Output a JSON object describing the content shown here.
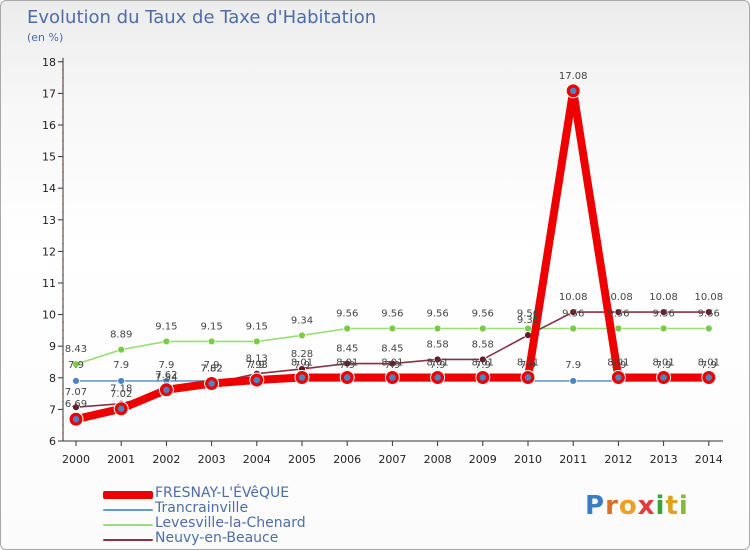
{
  "chart_data": {
    "type": "line",
    "title": "Evolution du Taux de Taxe d'Habitation",
    "subtitle": "(en %)",
    "xlabel": "",
    "ylabel": "(en %)",
    "ylim": [
      6,
      18
    ],
    "yticks": [
      "6",
      "7",
      "8",
      "9",
      "10",
      "11",
      "12",
      "13",
      "14",
      "15",
      "16",
      "17",
      "18"
    ],
    "categories": [
      "2000",
      "2001",
      "2002",
      "2003",
      "2004",
      "2005",
      "2006",
      "2007",
      "2008",
      "2009",
      "2010",
      "2011",
      "2012",
      "2013",
      "2014"
    ],
    "series": [
      {
        "name": "Levesville-la-Chenard",
        "color": "#99dd77",
        "marker": "#77cc44",
        "values": [
          8.43,
          8.89,
          9.15,
          9.15,
          9.15,
          9.34,
          9.56,
          9.56,
          9.56,
          9.56,
          9.56,
          9.56,
          9.56,
          9.56,
          9.56
        ],
        "labels": [
          "8.43",
          "8.89",
          "9.15",
          "9.15",
          "9.15",
          "9.34",
          "9.56",
          "9.56",
          "9.56",
          "9.56",
          "9.56",
          "9.56",
          "9.56",
          "9.56",
          "9.56"
        ]
      },
      {
        "name": "Trancrainville",
        "color": "#6699cc",
        "marker": "#4b86c4",
        "values": [
          7.9,
          7.9,
          7.9,
          7.9,
          7.9,
          7.9,
          7.9,
          7.9,
          7.9,
          7.9,
          7.9,
          7.9,
          7.9,
          7.9,
          7.9
        ],
        "labels": [
          "7.9",
          "7.9",
          "7.9",
          "7.9",
          "7.9",
          "7.9",
          "7.9",
          "7.9",
          "7.9",
          "7.9",
          "7.9",
          "7.9",
          "7.9",
          "7.9",
          "7.9"
        ]
      },
      {
        "name": "Neuvy-en-Beauce",
        "color": "#883344",
        "marker": "#661a26",
        "values": [
          7.07,
          7.18,
          7.54,
          7.82,
          8.13,
          8.28,
          8.45,
          8.45,
          8.58,
          8.58,
          9.35,
          10.08,
          10.08,
          10.08,
          10.08
        ],
        "labels": [
          "7.07",
          "7.18",
          "7.54",
          "7.82",
          "8.13",
          "8.28",
          "8.45",
          "8.45",
          "8.58",
          "8.58",
          "9.35",
          "10.08",
          "10.08",
          "10.08",
          "10.08"
        ]
      },
      {
        "name": "FRESNAY-L'ÉVêQUE",
        "color": "#ee0000",
        "marker": "#ee0000",
        "values": [
          6.69,
          7.02,
          7.62,
          7.82,
          7.93,
          8.01,
          8.01,
          8.01,
          8.01,
          8.01,
          8.01,
          17.08,
          8.01,
          8.01,
          8.01
        ],
        "labels": [
          "6.69",
          "7.02",
          "7.62",
          "7.82",
          "7.93",
          "8.01",
          "8.01",
          "8.01",
          "8.01",
          "8.01",
          "8.01",
          "17.08",
          "8.01",
          "8.01",
          "8.01"
        ]
      }
    ],
    "grid": false,
    "legend_position": "bottom-left"
  },
  "legend": [
    {
      "label": "FRESNAY-L'ÉVêQUE",
      "color": "#ee0000"
    },
    {
      "label": "Trancrainville",
      "color": "#6699cc"
    },
    {
      "label": "Levesville-la-Chenard",
      "color": "#99dd77"
    },
    {
      "label": "Neuvy-en-Beauce",
      "color": "#883344"
    }
  ],
  "brand": {
    "letters": [
      {
        "ch": "P",
        "color": "#3a7fc4"
      },
      {
        "ch": "r",
        "color": "#e06b2c"
      },
      {
        "ch": "o",
        "color": "#f0a020"
      },
      {
        "ch": "x",
        "color": "#e03c3c"
      },
      {
        "ch": "i",
        "color": "#3aa63a"
      },
      {
        "ch": "t",
        "color": "#e0a020"
      },
      {
        "ch": "i",
        "color": "#8ab83c"
      }
    ]
  }
}
